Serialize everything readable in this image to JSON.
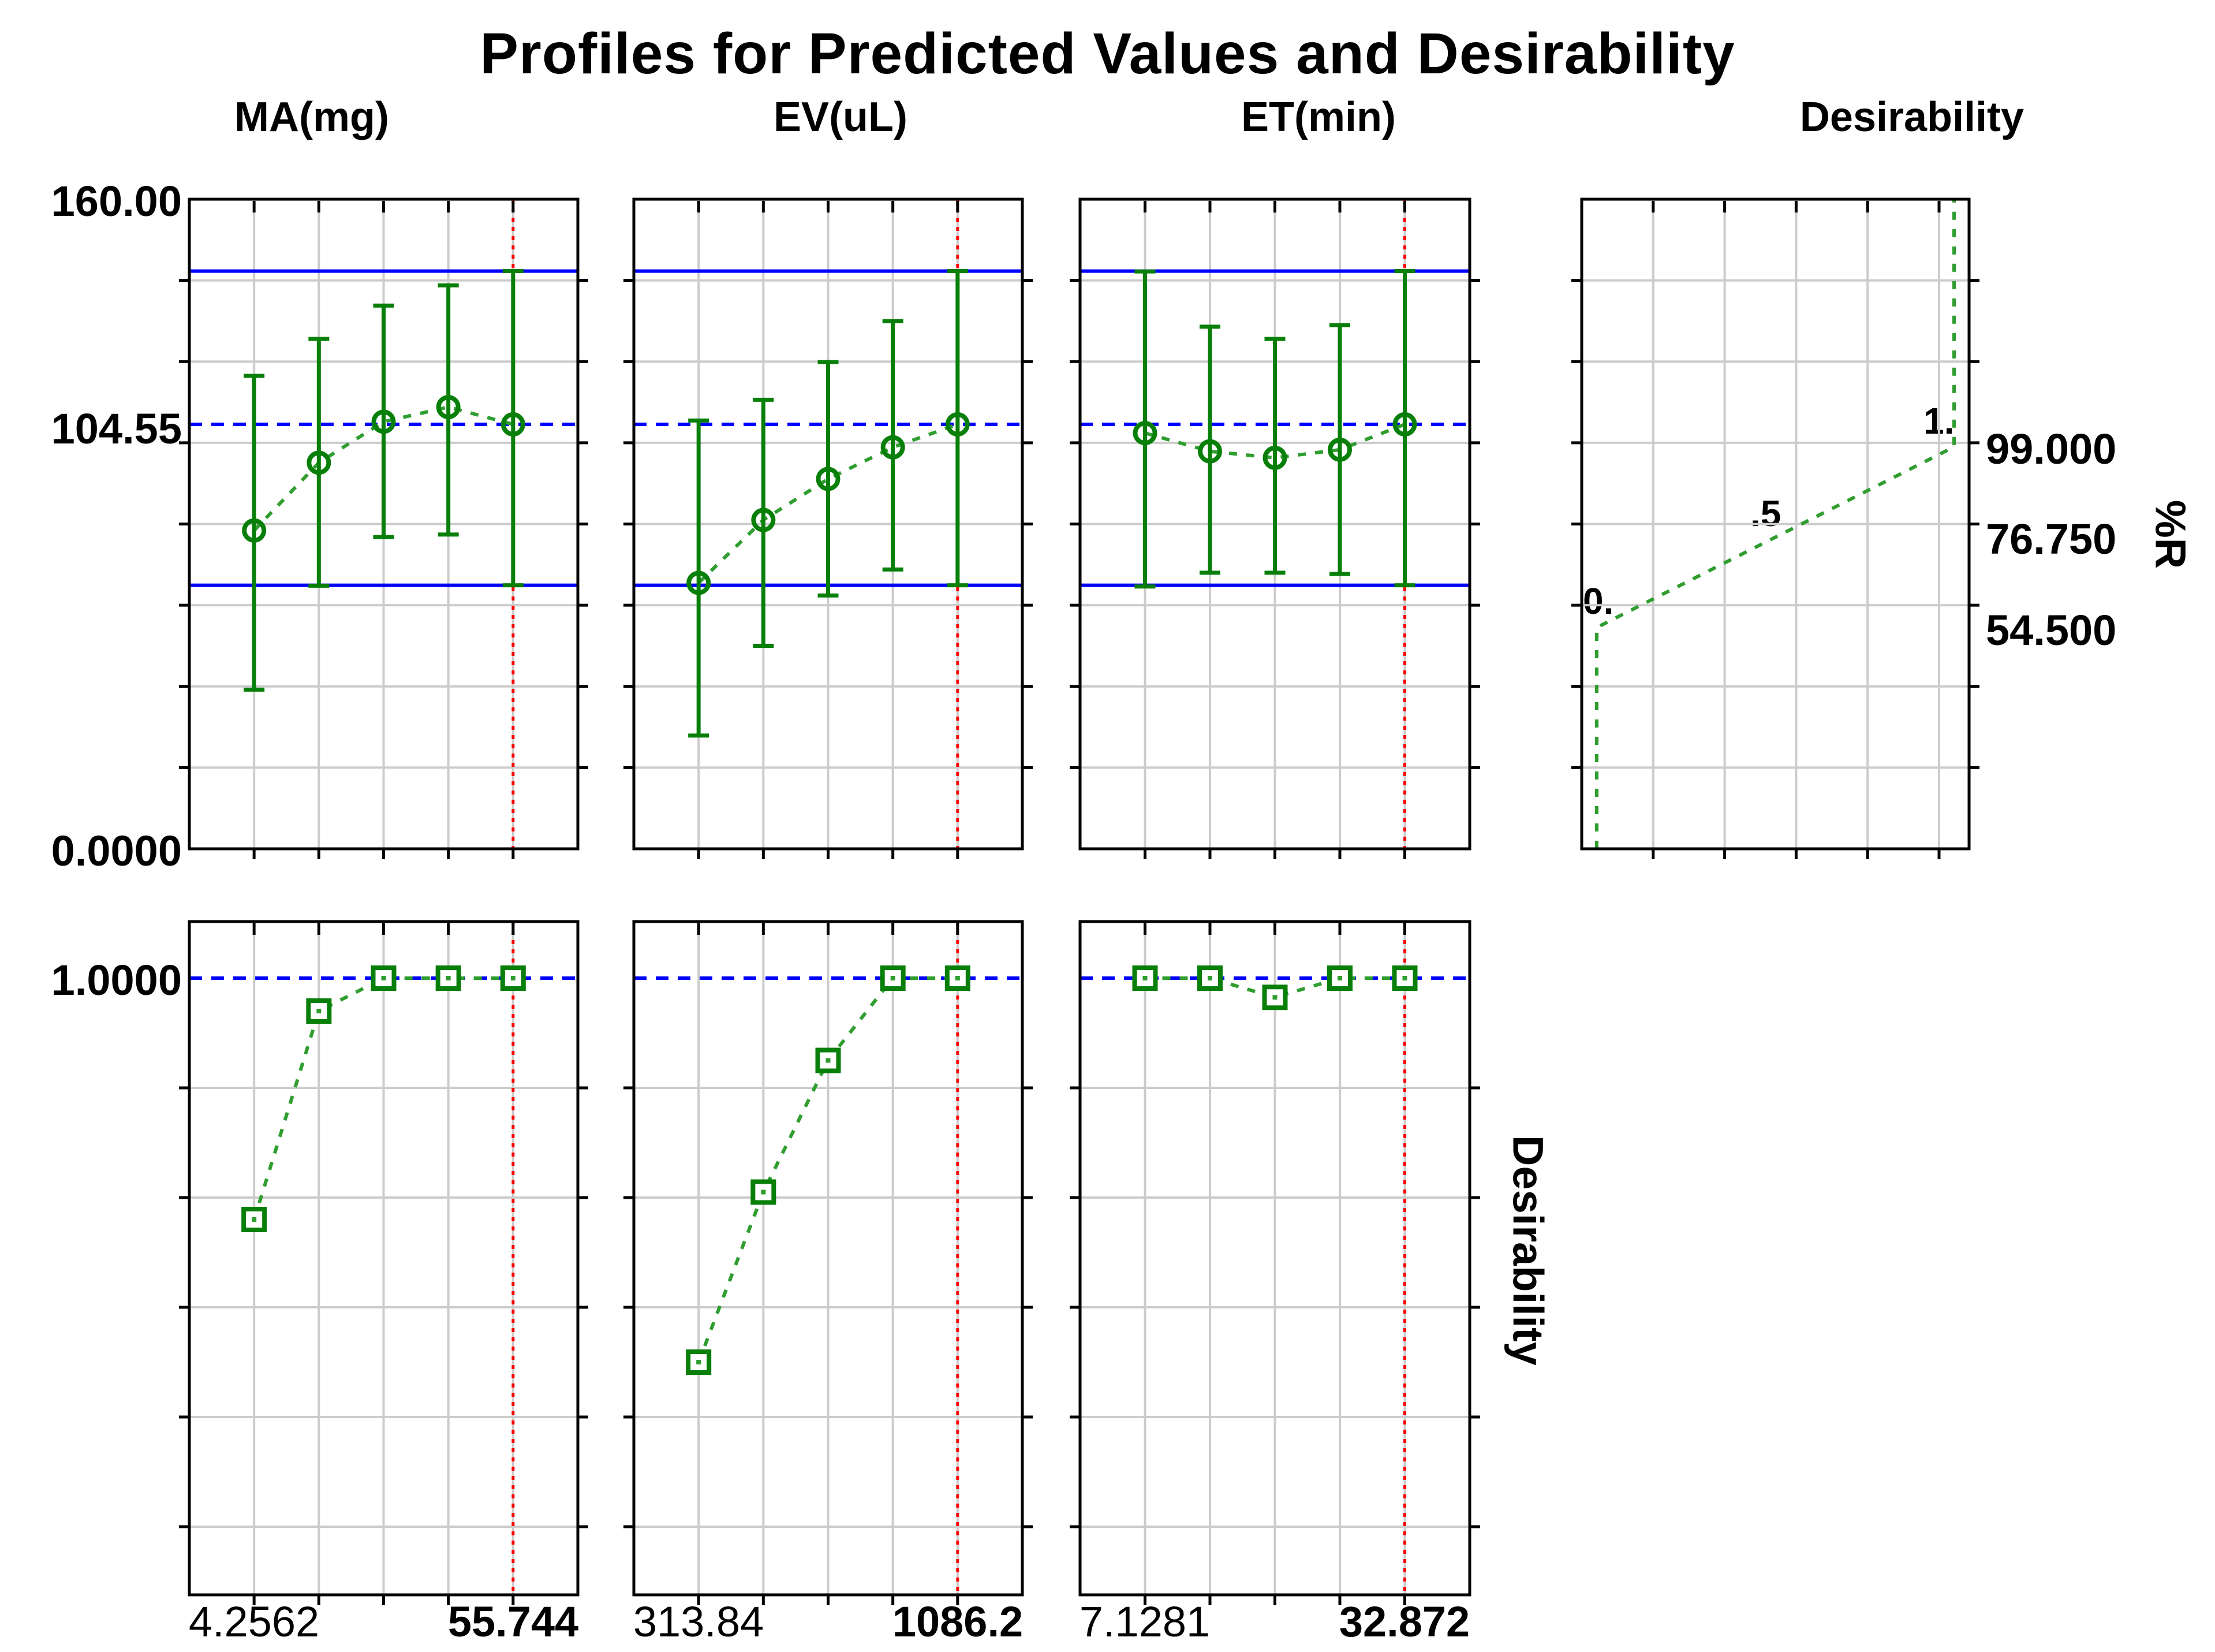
{
  "title": "Profiles for Predicted Values and Desirability",
  "column_headers": [
    "MA(mg)",
    "EV(uL)",
    "ET(min)",
    "Desirability"
  ],
  "left_axis": {
    "response_max": "160.00",
    "predicted_value": "104.55",
    "response_min": "0.0000",
    "desirability_max": "1.0000"
  },
  "right_axis": {
    "labels": [
      "99.000",
      "76.750",
      "54.500"
    ],
    "values": [
      99.0,
      76.75,
      54.5
    ],
    "axis_title": "%R"
  },
  "bottom_axis_title": "Desirability",
  "desirability_scale_labels": [
    "0.",
    ".5",
    "1."
  ],
  "colors": {
    "marker_green": "#087f08",
    "line_green": "#2f9e2f",
    "blue": "#0000ff",
    "red": "#ff0000",
    "grid": "#cccccc",
    "frame": "#000000"
  },
  "reference": {
    "predicted_value": 104.55,
    "prediction_interval": [
      64.9,
      142.3
    ],
    "response_range": [
      0,
      160
    ],
    "desirability_range": [
      0,
      1
    ],
    "current_level_index": 5,
    "levels_per_factor": 5
  },
  "chart_data": [
    {
      "id": "ma-prediction",
      "type": "line",
      "factor": "MA(mg)",
      "x_tick_labels": [
        "4.2562",
        "55.744"
      ],
      "ylabel": "%R",
      "ylim": [
        0,
        160
      ],
      "y_gridline_step": 20,
      "values": [
        78.4,
        95.1,
        105.2,
        108.8,
        104.55
      ],
      "ci_low": [
        39.2,
        64.8,
        76.8,
        77.4,
        64.9
      ],
      "ci_high": [
        116.5,
        125.6,
        133.8,
        138.8,
        142.3
      ]
    },
    {
      "id": "ev-prediction",
      "type": "line",
      "factor": "EV(uL)",
      "x_tick_labels": [
        "313.84",
        "1086.2"
      ],
      "ylabel": "%R",
      "ylim": [
        0,
        160
      ],
      "y_gridline_step": 20,
      "values": [
        65.5,
        81.0,
        91.1,
        98.9,
        104.55
      ],
      "ci_low": [
        27.9,
        50.0,
        62.4,
        68.8,
        64.9
      ],
      "ci_high": [
        105.5,
        110.6,
        119.9,
        130.0,
        142.3
      ]
    },
    {
      "id": "et-prediction",
      "type": "line",
      "factor": "ET(min)",
      "x_tick_labels": [
        "7.1281",
        "32.872"
      ],
      "ylabel": "%R",
      "ylim": [
        0,
        160
      ],
      "y_gridline_step": 20,
      "values": [
        102.4,
        97.9,
        96.3,
        98.3,
        104.55
      ],
      "ci_low": [
        64.6,
        68.0,
        68.0,
        67.7,
        64.9
      ],
      "ci_high": [
        142.2,
        128.6,
        125.6,
        129.0,
        142.3
      ]
    },
    {
      "id": "desirability-function",
      "type": "line",
      "xlabel": "Desirability",
      "ylabel": "%R",
      "x_range": [
        0,
        1
      ],
      "ylim": [
        0,
        160
      ],
      "y_gridline_step": 20,
      "anchors_desirability": [
        0,
        0.5,
        1
      ],
      "anchors_response": [
        54.5,
        76.75,
        99.0
      ],
      "anchor_labels": [
        "0.",
        ".5",
        "1."
      ]
    },
    {
      "id": "ma-desirability",
      "type": "line",
      "factor": "MA(mg)",
      "ylim": [
        0,
        1
      ],
      "y_gridline_step": 0.2,
      "values": [
        0.56,
        0.94,
        1.0,
        1.0,
        1.0
      ],
      "target_line": 1.0
    },
    {
      "id": "ev-desirability",
      "type": "line",
      "factor": "EV(uL)",
      "ylim": [
        0,
        1
      ],
      "y_gridline_step": 0.2,
      "values": [
        0.3,
        0.61,
        0.85,
        1.0,
        1.0
      ],
      "target_line": 1.0
    },
    {
      "id": "et-desirability",
      "type": "line",
      "factor": "ET(min)",
      "ylim": [
        0,
        1
      ],
      "y_gridline_step": 0.2,
      "values": [
        1.0,
        1.0,
        0.965,
        1.0,
        1.0
      ],
      "target_line": 1.0
    }
  ]
}
